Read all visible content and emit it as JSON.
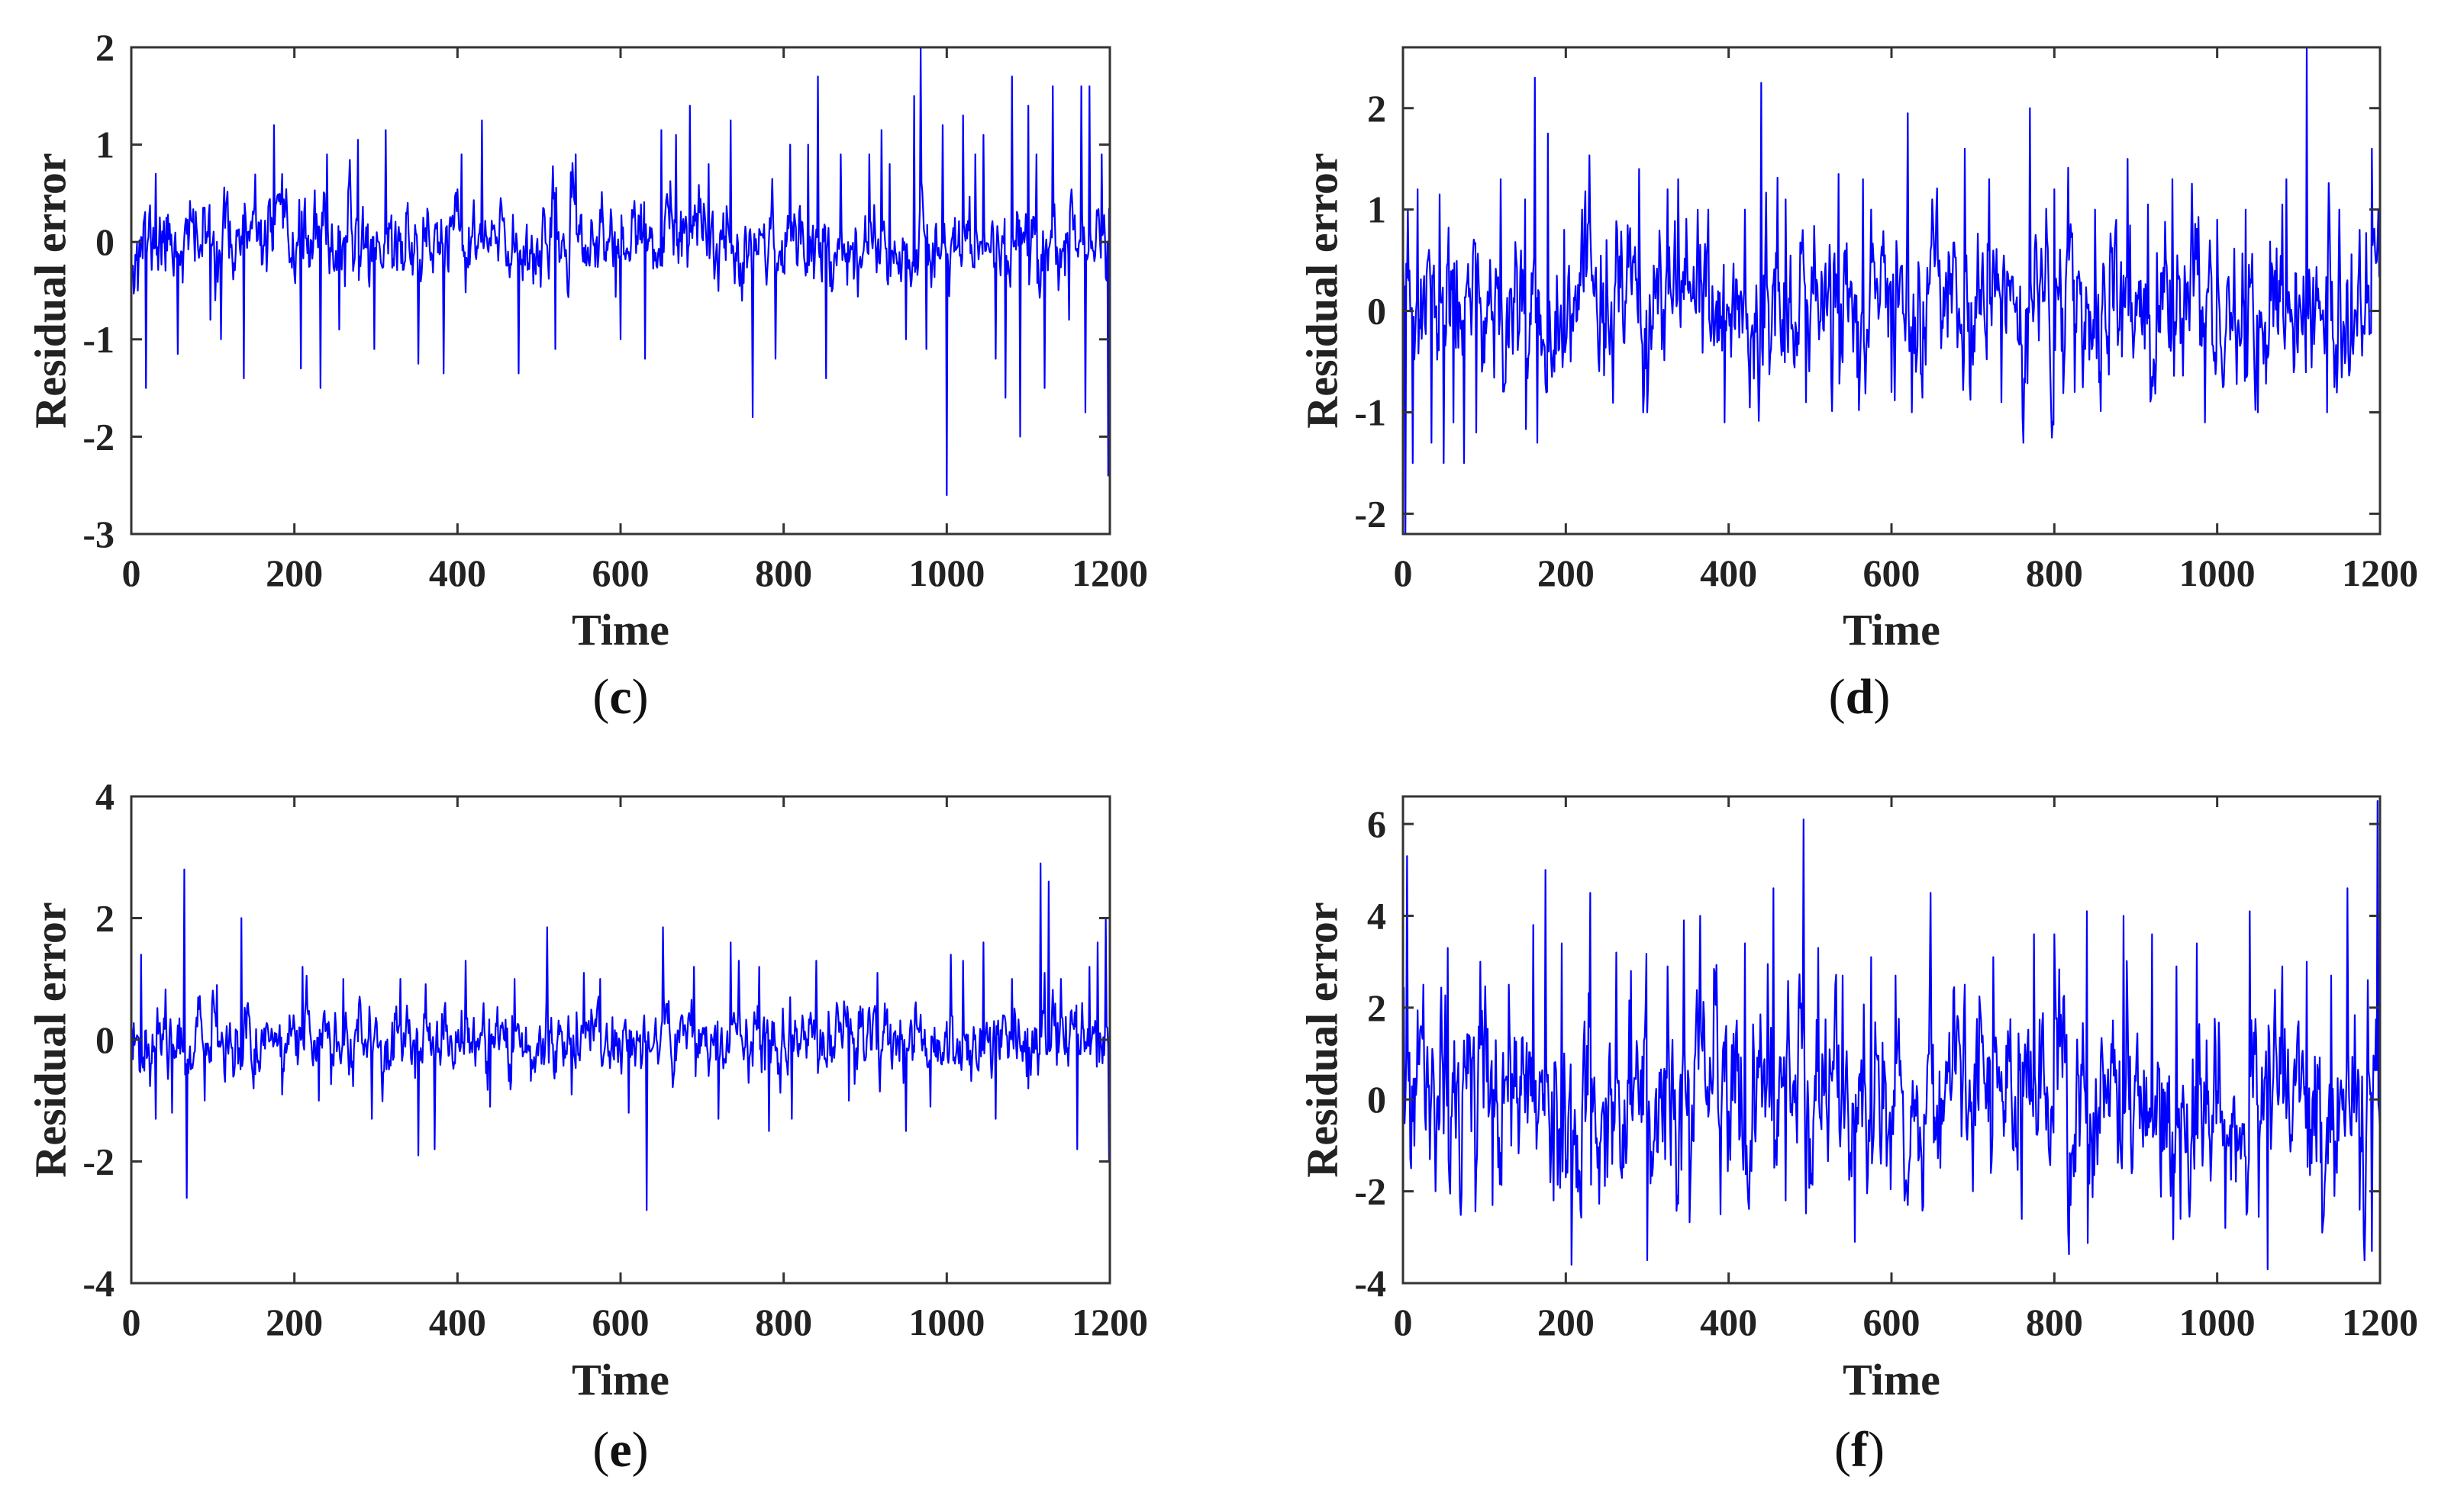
{
  "chart_data": [
    {
      "panel": "c",
      "type": "line",
      "panel_label_open": "(",
      "panel_label_letter": "c",
      "panel_label_close": ")",
      "xlabel": "Time",
      "ylabel": "Residual error",
      "xlim": [
        0,
        1200
      ],
      "ylim": [
        -3,
        2
      ],
      "xticks": [
        0,
        200,
        400,
        600,
        800,
        1000,
        1200
      ],
      "yticks": [
        -3,
        -2,
        -1,
        0,
        1,
        2
      ],
      "xtick_labels": [
        "0",
        "200",
        "400",
        "600",
        "800",
        "1000",
        "1200"
      ],
      "ytick_labels": [
        "-3",
        "-2",
        "-1",
        "0",
        "1",
        "2"
      ],
      "series_color": "#0000ff",
      "noise_sd": 0.18,
      "drift": 0.03,
      "seed": 11,
      "spikes": [
        [
          8,
          -0.5
        ],
        [
          18,
          -1.5
        ],
        [
          30,
          0.7
        ],
        [
          57,
          -1.15
        ],
        [
          97,
          -0.8
        ],
        [
          110,
          -1.0
        ],
        [
          138,
          -1.4
        ],
        [
          175,
          1.2
        ],
        [
          208,
          -1.3
        ],
        [
          232,
          -1.5
        ],
        [
          240,
          0.9
        ],
        [
          255,
          -0.9
        ],
        [
          278,
          1.05
        ],
        [
          298,
          -1.1
        ],
        [
          312,
          1.15
        ],
        [
          352,
          -1.25
        ],
        [
          383,
          -1.35
        ],
        [
          405,
          0.9
        ],
        [
          430,
          1.25
        ],
        [
          475,
          -1.35
        ],
        [
          520,
          -1.1
        ],
        [
          545,
          0.9
        ],
        [
          600,
          -1.0
        ],
        [
          630,
          -1.2
        ],
        [
          650,
          1.15
        ],
        [
          668,
          1.1
        ],
        [
          685,
          1.4
        ],
        [
          708,
          0.8
        ],
        [
          735,
          1.25
        ],
        [
          762,
          -1.8
        ],
        [
          790,
          -1.2
        ],
        [
          808,
          1.0
        ],
        [
          830,
          1.0
        ],
        [
          842,
          1.7
        ],
        [
          852,
          -1.4
        ],
        [
          870,
          0.9
        ],
        [
          905,
          0.9
        ],
        [
          920,
          1.15
        ],
        [
          930,
          0.8
        ],
        [
          950,
          -1.0
        ],
        [
          960,
          1.5
        ],
        [
          968,
          2.0
        ],
        [
          975,
          -1.1
        ],
        [
          995,
          1.2
        ],
        [
          1000,
          -2.6
        ],
        [
          1020,
          1.3
        ],
        [
          1035,
          0.9
        ],
        [
          1045,
          1.1
        ],
        [
          1060,
          -1.2
        ],
        [
          1072,
          -1.6
        ],
        [
          1080,
          1.7
        ],
        [
          1090,
          -2.0
        ],
        [
          1100,
          1.4
        ],
        [
          1110,
          0.9
        ],
        [
          1120,
          -1.5
        ],
        [
          1130,
          1.6
        ],
        [
          1150,
          -0.8
        ],
        [
          1165,
          1.6
        ],
        [
          1170,
          -1.75
        ],
        [
          1175,
          1.6
        ],
        [
          1190,
          0.9
        ],
        [
          1198,
          -2.4
        ]
      ]
    },
    {
      "panel": "d",
      "type": "line",
      "panel_label_open": "(",
      "panel_label_letter": "d",
      "panel_label_close": ")",
      "xlabel": "Time",
      "ylabel": "Residual error",
      "xlim": [
        0,
        1200
      ],
      "ylim": [
        -2.2,
        2.6
      ],
      "xticks": [
        0,
        200,
        400,
        600,
        800,
        1000,
        1200
      ],
      "yticks": [
        -2,
        -1,
        0,
        1,
        2
      ],
      "xtick_labels": [
        "0",
        "200",
        "400",
        "600",
        "800",
        "1000",
        "1200"
      ],
      "ytick_labels": [
        "-2",
        "-1",
        "0",
        "1",
        "2"
      ],
      "series_color": "#0000ff",
      "noise_sd": 0.32,
      "drift": 0.02,
      "seed": 23,
      "spikes": [
        [
          3,
          -2.2
        ],
        [
          6,
          1.0
        ],
        [
          12,
          -1.5
        ],
        [
          18,
          1.2
        ],
        [
          35,
          -1.3
        ],
        [
          45,
          1.15
        ],
        [
          50,
          -1.5
        ],
        [
          62,
          -1.1
        ],
        [
          75,
          -1.5
        ],
        [
          90,
          -1.2
        ],
        [
          120,
          1.3
        ],
        [
          150,
          1.1
        ],
        [
          162,
          2.3
        ],
        [
          165,
          -1.3
        ],
        [
          178,
          1.75
        ],
        [
          198,
          0.8
        ],
        [
          220,
          1.0
        ],
        [
          250,
          0.7
        ],
        [
          290,
          1.4
        ],
        [
          300,
          -1.0
        ],
        [
          325,
          1.2
        ],
        [
          338,
          1.3
        ],
        [
          375,
          1.0
        ],
        [
          395,
          -1.1
        ],
        [
          420,
          1.0
        ],
        [
          440,
          2.25
        ],
        [
          470,
          1.1
        ],
        [
          495,
          -0.9
        ],
        [
          535,
          1.35
        ],
        [
          565,
          1.3
        ],
        [
          575,
          1.0
        ],
        [
          600,
          -0.8
        ],
        [
          620,
          1.95
        ],
        [
          625,
          -1.0
        ],
        [
          650,
          1.1
        ],
        [
          690,
          1.6
        ],
        [
          720,
          1.3
        ],
        [
          735,
          -0.9
        ],
        [
          770,
          2.0
        ],
        [
          800,
          1.2
        ],
        [
          825,
          -0.8
        ],
        [
          850,
          1.0
        ],
        [
          890,
          1.5
        ],
        [
          915,
          1.05
        ],
        [
          945,
          1.3
        ],
        [
          985,
          -1.1
        ],
        [
          1000,
          0.9
        ],
        [
          1035,
          1.0
        ],
        [
          1050,
          -1.0
        ],
        [
          1085,
          1.3
        ],
        [
          1110,
          2.6
        ],
        [
          1135,
          -1.0
        ],
        [
          1150,
          1.0
        ],
        [
          1175,
          0.8
        ],
        [
          1190,
          1.6
        ],
        [
          1198,
          1.0
        ]
      ]
    },
    {
      "panel": "e",
      "type": "line",
      "panel_label_open": "(",
      "panel_label_letter": "e",
      "panel_label_close": ")",
      "xlabel": "Time",
      "ylabel": "Residual error",
      "xlim": [
        0,
        1200
      ],
      "ylim": [
        -4,
        4
      ],
      "xticks": [
        0,
        200,
        400,
        600,
        800,
        1000,
        1200
      ],
      "yticks": [
        -4,
        -2,
        0,
        2,
        4
      ],
      "xtick_labels": [
        "0",
        "200",
        "400",
        "600",
        "800",
        "1000",
        "1200"
      ],
      "ytick_labels": [
        "-4",
        "-2",
        "0",
        "2",
        "4"
      ],
      "series_color": "#0000ff",
      "noise_sd": 0.25,
      "drift": 0.03,
      "seed": 37,
      "spikes": [
        [
          12,
          1.4
        ],
        [
          30,
          -1.3
        ],
        [
          50,
          -1.2
        ],
        [
          65,
          2.8
        ],
        [
          68,
          -2.6
        ],
        [
          90,
          -1.0
        ],
        [
          105,
          0.9
        ],
        [
          135,
          2.0
        ],
        [
          150,
          -0.8
        ],
        [
          185,
          -0.9
        ],
        [
          210,
          1.2
        ],
        [
          230,
          -1.0
        ],
        [
          260,
          1.0
        ],
        [
          295,
          -1.3
        ],
        [
          330,
          1.0
        ],
        [
          352,
          -1.9
        ],
        [
          372,
          -1.8
        ],
        [
          410,
          1.3
        ],
        [
          440,
          -1.1
        ],
        [
          470,
          1.0
        ],
        [
          510,
          1.85
        ],
        [
          540,
          -0.9
        ],
        [
          555,
          1.1
        ],
        [
          575,
          1.0
        ],
        [
          610,
          -1.2
        ],
        [
          632,
          -2.8
        ],
        [
          652,
          1.85
        ],
        [
          690,
          1.2
        ],
        [
          720,
          -1.3
        ],
        [
          735,
          1.6
        ],
        [
          745,
          1.3
        ],
        [
          770,
          1.2
        ],
        [
          782,
          -1.5
        ],
        [
          810,
          -1.3
        ],
        [
          840,
          1.3
        ],
        [
          880,
          -1.0
        ],
        [
          915,
          1.1
        ],
        [
          950,
          -1.5
        ],
        [
          980,
          -1.1
        ],
        [
          1005,
          1.4
        ],
        [
          1020,
          1.3
        ],
        [
          1045,
          1.6
        ],
        [
          1060,
          -1.3
        ],
        [
          1080,
          1.0
        ],
        [
          1100,
          -0.8
        ],
        [
          1115,
          2.9
        ],
        [
          1120,
          1.1
        ],
        [
          1125,
          2.6
        ],
        [
          1140,
          1.0
        ],
        [
          1160,
          -1.8
        ],
        [
          1175,
          1.2
        ],
        [
          1185,
          1.6
        ],
        [
          1195,
          2.0
        ],
        [
          1199,
          -2.0
        ]
      ]
    },
    {
      "panel": "f",
      "type": "line",
      "panel_label_open": "(",
      "panel_label_letter": "f",
      "panel_label_close": ")",
      "xlabel": "Time",
      "ylabel": "Residual error",
      "xlim": [
        0,
        1200
      ],
      "ylim": [
        -4,
        6.6
      ],
      "xticks": [
        0,
        200,
        400,
        600,
        800,
        1000,
        1200
      ],
      "yticks": [
        -4,
        -2,
        0,
        2,
        4,
        6
      ],
      "xtick_labels": [
        "0",
        "200",
        "400",
        "600",
        "800",
        "1000",
        "1200"
      ],
      "ytick_labels": [
        "-4",
        "-2",
        "0",
        "2",
        "4",
        "6"
      ],
      "series_color": "#0000ff",
      "noise_sd": 0.85,
      "drift": 0.02,
      "seed": 53,
      "spikes": [
        [
          5,
          5.3
        ],
        [
          10,
          -1.5
        ],
        [
          25,
          2.5
        ],
        [
          40,
          -2.0
        ],
        [
          55,
          3.3
        ],
        [
          70,
          -2.2
        ],
        [
          95,
          3.0
        ],
        [
          110,
          -2.3
        ],
        [
          130,
          2.5
        ],
        [
          160,
          3.8
        ],
        [
          175,
          5.0
        ],
        [
          185,
          -2.2
        ],
        [
          195,
          3.4
        ],
        [
          207,
          -3.6
        ],
        [
          230,
          4.5
        ],
        [
          262,
          3.2
        ],
        [
          280,
          2.8
        ],
        [
          300,
          -3.5
        ],
        [
          325,
          2.9
        ],
        [
          345,
          3.9
        ],
        [
          365,
          4.0
        ],
        [
          390,
          -2.5
        ],
        [
          420,
          3.4
        ],
        [
          455,
          4.6
        ],
        [
          470,
          -2.2
        ],
        [
          492,
          6.1
        ],
        [
          510,
          3.3
        ],
        [
          540,
          2.7
        ],
        [
          555,
          -3.1
        ],
        [
          575,
          3.1
        ],
        [
          605,
          2.7
        ],
        [
          620,
          -2.3
        ],
        [
          648,
          4.5
        ],
        [
          690,
          2.5
        ],
        [
          700,
          -2.0
        ],
        [
          725,
          3.1
        ],
        [
          760,
          -2.6
        ],
        [
          775,
          3.6
        ],
        [
          800,
          3.6
        ],
        [
          820,
          -2.3
        ],
        [
          840,
          4.1
        ],
        [
          885,
          4.0
        ],
        [
          920,
          3.6
        ],
        [
          950,
          2.9
        ],
        [
          955,
          -2.6
        ],
        [
          975,
          3.4
        ],
        [
          1010,
          -2.8
        ],
        [
          1040,
          4.1
        ],
        [
          1062,
          -3.7
        ],
        [
          1080,
          2.9
        ],
        [
          1110,
          3.0
        ],
        [
          1140,
          2.7
        ],
        [
          1160,
          4.6
        ],
        [
          1175,
          -2.4
        ],
        [
          1185,
          2.6
        ],
        [
          1190,
          -3.3
        ],
        [
          1197,
          6.5
        ]
      ]
    }
  ]
}
